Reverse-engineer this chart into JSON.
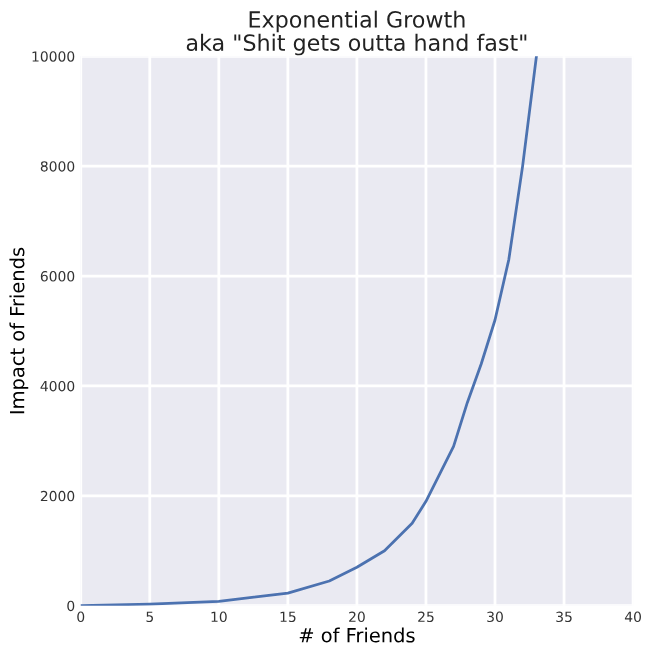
{
  "chart_data": {
    "type": "line",
    "title": "Exponential Growth\naka \"Shit gets outta hand fast\"",
    "xlabel": "# of Friends",
    "ylabel": "Impact of Friends",
    "x": [
      0,
      5,
      10,
      15,
      18,
      20,
      22,
      24,
      25,
      26,
      27,
      28,
      29,
      30,
      31,
      32,
      33
    ],
    "series": [
      {
        "color": "#4c72b0",
        "values": [
          0,
          30,
          80,
          230,
          450,
          700,
          1000,
          1500,
          1900,
          2400,
          2900,
          3700,
          4400,
          5200,
          6300,
          8000,
          10000
        ]
      }
    ],
    "xlim": [
      0,
      40
    ],
    "ylim": [
      0,
      10000
    ],
    "xticks": [
      0,
      5,
      10,
      15,
      20,
      25,
      30,
      35,
      40
    ],
    "yticks": [
      0,
      2000,
      4000,
      6000,
      8000,
      10000
    ],
    "grid": true,
    "legend": false
  }
}
